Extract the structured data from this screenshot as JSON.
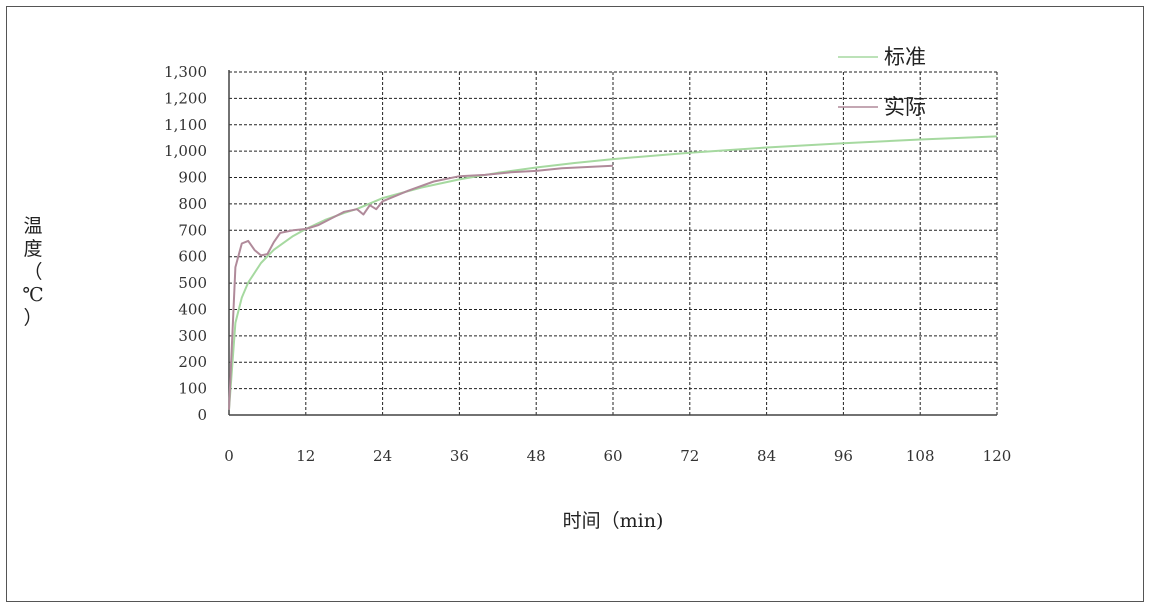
{
  "chart_data": {
    "type": "line",
    "title": "",
    "xlabel": "时间（min)",
    "ylabel": "温度（℃）",
    "xlim": [
      0,
      120
    ],
    "ylim": [
      0,
      1300
    ],
    "xticks": [
      0,
      12,
      24,
      36,
      48,
      60,
      72,
      84,
      96,
      108,
      120
    ],
    "yticks": [
      0,
      100,
      200,
      300,
      400,
      500,
      600,
      700,
      800,
      900,
      1000,
      1100,
      1200,
      1300
    ],
    "ytick_labels": [
      "0",
      "100",
      "200",
      "300",
      "400",
      "500",
      "600",
      "700",
      "800",
      "900",
      "1,000",
      "1,100",
      "1,200",
      "1,300"
    ],
    "grid": true,
    "legend_position": "top-right",
    "series": [
      {
        "name": "标准",
        "color": "#a6d9a0",
        "x": [
          0,
          1,
          2,
          3,
          5,
          7,
          10,
          12,
          15,
          18,
          20,
          24,
          30,
          36,
          42,
          48,
          54,
          60,
          72,
          84,
          96,
          108,
          120
        ],
        "y": [
          20,
          349,
          445,
          502,
          576,
          626,
          678,
          705,
          739,
          766,
          781,
          822,
          862,
          893,
          918,
          938,
          955,
          970,
          994,
          1014,
          1030,
          1044,
          1056
        ]
      },
      {
        "name": "实际",
        "color": "#b08a9a",
        "x": [
          0,
          1,
          2,
          3,
          4,
          5,
          6,
          7,
          8,
          10,
          12,
          14,
          16,
          18,
          20,
          21,
          22,
          23,
          24,
          28,
          32,
          36,
          40,
          44,
          48,
          52,
          56,
          60
        ],
        "y": [
          20,
          560,
          650,
          660,
          625,
          605,
          610,
          655,
          690,
          700,
          705,
          720,
          745,
          770,
          780,
          760,
          795,
          780,
          810,
          850,
          885,
          905,
          910,
          920,
          925,
          935,
          940,
          945
        ]
      }
    ]
  }
}
